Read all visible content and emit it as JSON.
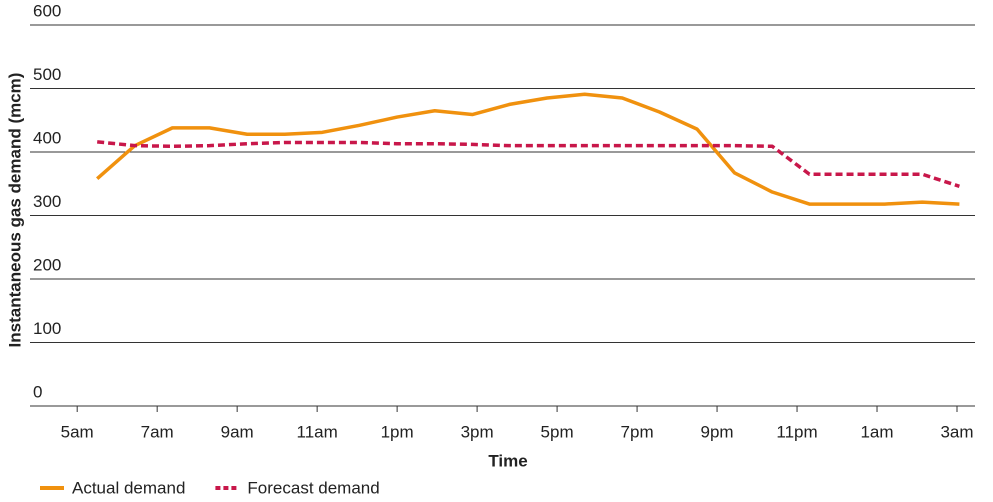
{
  "chart_data": {
    "type": "line",
    "xlabel": "Time",
    "ylabel": "Instantaneous gas demand (mcm)",
    "x": [
      0.5,
      1.44,
      2.38,
      3.31,
      4.25,
      5.19,
      6.13,
      7.06,
      8,
      8.94,
      9.88,
      10.81,
      11.75,
      12.69,
      13.63,
      14.56,
      15.5,
      16.44,
      17.38,
      18.31,
      19.25,
      20.19,
      21.13,
      22.06
    ],
    "series": [
      {
        "name": "Actual demand",
        "color": "#f0910e",
        "dashed": false,
        "values": [
          358,
          410,
          438,
          438,
          428,
          428,
          431,
          442,
          455,
          465,
          459,
          475,
          485,
          491,
          485,
          463,
          436,
          367,
          337,
          318,
          318,
          318,
          321,
          318
        ]
      },
      {
        "name": "Forecast demand",
        "color": "#c8174a",
        "dashed": true,
        "values": [
          416,
          410,
          409,
          410,
          413,
          415,
          415,
          415,
          413,
          413,
          412,
          410,
          410,
          410,
          410,
          410,
          410,
          410,
          409,
          365,
          365,
          365,
          365,
          346
        ]
      }
    ],
    "xlim": [
      -1.18,
      22.45
    ],
    "xticks": [
      {
        "value": 0,
        "label": "5am"
      },
      {
        "value": 2,
        "label": "7am"
      },
      {
        "value": 4,
        "label": "9am"
      },
      {
        "value": 6,
        "label": "11am"
      },
      {
        "value": 8,
        "label": "1pm"
      },
      {
        "value": 10,
        "label": "3pm"
      },
      {
        "value": 12,
        "label": "5pm"
      },
      {
        "value": 14,
        "label": "7pm"
      },
      {
        "value": 16,
        "label": "9pm"
      },
      {
        "value": 18,
        "label": "11pm"
      },
      {
        "value": 20,
        "label": "1am"
      },
      {
        "value": 22,
        "label": "3am"
      }
    ],
    "ylim": [
      0,
      600
    ],
    "yticks": [
      0,
      100,
      200,
      300,
      400,
      500,
      600
    ],
    "grid": true,
    "legend": "bottom-left"
  }
}
